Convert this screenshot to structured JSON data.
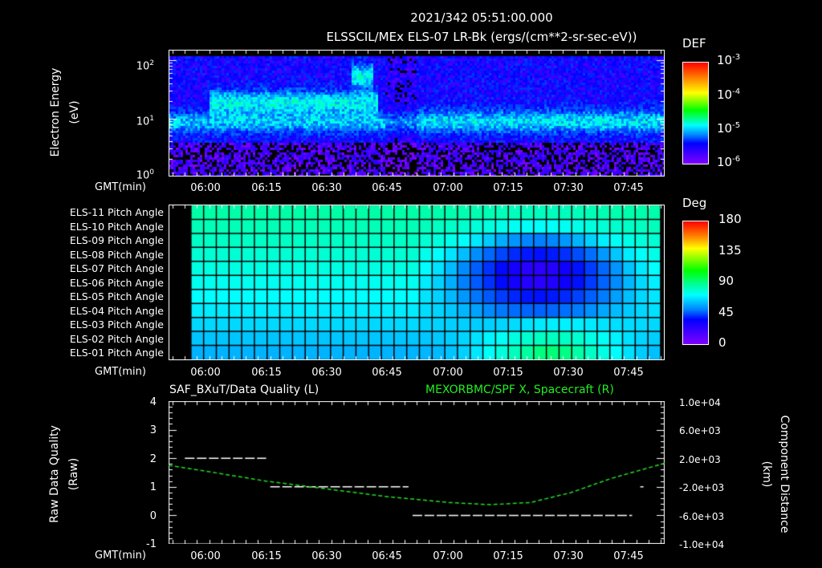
{
  "header": {
    "timestamp": "2021/342 05:51:00.000",
    "panel1_title": "ELSSCIL/MEx ELS-07 LR-Bk  (ergs/(cm**2-sr-sec-eV))"
  },
  "time_axis": {
    "label": "GMT(min)",
    "ticks": [
      "06:00",
      "06:15",
      "06:30",
      "06:45",
      "07:00",
      "07:15",
      "07:30",
      "07:45"
    ]
  },
  "panel1": {
    "ylabel_line1": "Electron Energy",
    "ylabel_line2": "(eV)",
    "yticks": [
      "10",
      "10",
      "10"
    ],
    "yticks_exp": [
      "2",
      "1",
      "0"
    ],
    "colorbar": {
      "title": "DEF",
      "ticks": [
        "10",
        "10",
        "10",
        "10"
      ],
      "ticks_exp": [
        "-3",
        "-4",
        "-5",
        "-6"
      ]
    }
  },
  "panel2": {
    "row_labels": [
      "ELS-11 Pitch Angle",
      "ELS-10 Pitch Angle",
      "ELS-09 Pitch Angle",
      "ELS-08 Pitch Angle",
      "ELS-07 Pitch Angle",
      "ELS-06 Pitch Angle",
      "ELS-05 Pitch Angle",
      "ELS-04 Pitch Angle",
      "ELS-03 Pitch Angle",
      "ELS-02 Pitch Angle",
      "ELS-01 Pitch Angle"
    ],
    "colorbar": {
      "title": "Deg",
      "ticks": [
        "180",
        "135",
        "90",
        "45",
        "0"
      ]
    }
  },
  "panel3": {
    "left_title": "SAF_BXuT/Data Quality (L)",
    "right_title": "MEXORBMC/SPF X, Spacecraft (R)",
    "ylabel_left_line1": "Raw Data Quality",
    "ylabel_left_line2": "(Raw)",
    "yticks_left": [
      "4",
      "3",
      "2",
      "1",
      "0",
      "-1"
    ],
    "ylabel_right_line1": "Component Distance",
    "ylabel_right_line2": "(km)",
    "yticks_right": [
      "1.0e+04",
      "6.0e+03",
      "2.0e+03",
      "-2.0e+03",
      "-6.0e+03",
      "-1.0e+04"
    ],
    "colors": {
      "left_series": "#ffffff",
      "right_series": "#22dd22"
    }
  },
  "chart_data": [
    {
      "type": "heatmap",
      "title": "ELSSCIL/MEx ELS-07 LR-Bk (ergs/(cm**2-sr-sec-eV))",
      "xlabel": "GMT(min)",
      "ylabel": "Electron Energy (eV)",
      "yscale": "log",
      "ylim": [
        1,
        150
      ],
      "xlim": [
        "05:51",
        "07:53"
      ],
      "colorbar": {
        "label": "DEF",
        "scale": "log",
        "range": [
          1e-06,
          0.001
        ]
      },
      "features": [
        {
          "time": "06:10-06:50",
          "energy_eV": "10-40",
          "level": "~1e-4 (green)"
        },
        {
          "time": "06:47-06:50",
          "energy_eV": "40-100",
          "level": "~1e-4 (green peak)"
        },
        {
          "time": "05:51-06:10",
          "energy_eV": "6-15",
          "level": "~1e-5 (cyan)"
        },
        {
          "time": "06:55-07:53",
          "energy_eV": "6-30",
          "level": "~1e-5 (cyan/blue)"
        }
      ]
    },
    {
      "type": "heatmap",
      "title": "Pitch Angle",
      "xlabel": "GMT(min)",
      "ylabel": "ELS anode",
      "categories": [
        "ELS-11",
        "ELS-10",
        "ELS-09",
        "ELS-08",
        "ELS-07",
        "ELS-06",
        "ELS-05",
        "ELS-04",
        "ELS-03",
        "ELS-02",
        "ELS-01"
      ],
      "colorbar": {
        "label": "Deg",
        "range": [
          0,
          180
        ]
      },
      "summary": [
        {
          "rows": "ELS-11..ELS-07",
          "time": "05:57-06:59",
          "deg": 100
        },
        {
          "rows": "ELS-06..ELS-01",
          "time": "05:57-06:59",
          "deg": 80
        },
        {
          "rows": "ELS-09..ELS-06",
          "time": "07:15-07:30",
          "deg": 30
        },
        {
          "rows": "ELS-01",
          "time": "07:15-07:30",
          "deg": 120
        }
      ]
    },
    {
      "type": "line",
      "title": "SAF_BXuT/Data Quality (L) / MEXORBMC/SPF X, Spacecraft (R)",
      "xlabel": "GMT(min)",
      "ylabel": "Raw Data Quality (Raw)",
      "ylim": [
        -1,
        4
      ],
      "y2label": "Component Distance (km)",
      "y2lim": [
        -10000,
        10000
      ],
      "series": [
        {
          "name": "SAF_BXuT/Data Quality",
          "axis": "left",
          "x": [
            "05:55",
            "06:15",
            "06:16",
            "06:50",
            "06:51",
            "07:45",
            "07:47"
          ],
          "values": [
            2,
            2,
            1,
            1,
            0,
            0,
            1
          ]
        },
        {
          "name": "MEXORBMC/SPF X, Spacecraft",
          "axis": "right",
          "x": [
            "05:51",
            "06:00",
            "06:15",
            "06:30",
            "06:45",
            "07:00",
            "07:10",
            "07:20",
            "07:30",
            "07:40",
            "07:53"
          ],
          "values": [
            1000,
            200,
            -1200,
            -2300,
            -3400,
            -4200,
            -4500,
            -4200,
            -2800,
            -800,
            1300
          ]
        }
      ]
    }
  ]
}
